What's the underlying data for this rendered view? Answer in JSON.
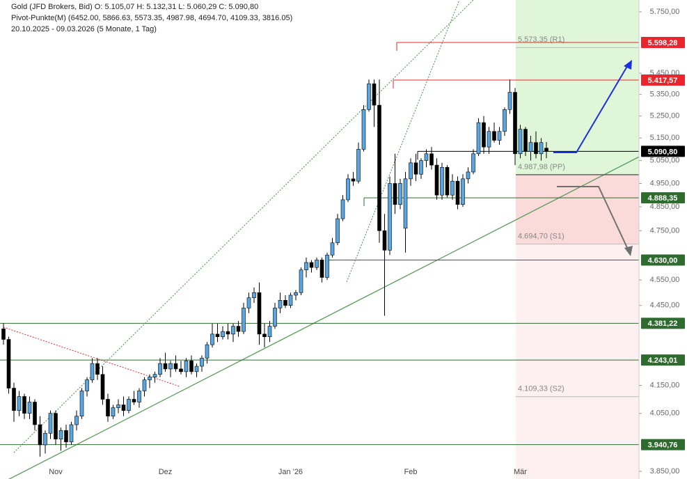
{
  "chart_data": {
    "type": "candlestick",
    "header": [
      "Gold (JFD Brokers, Bid)  O: 5.105,07  H: 5.132,31  L: 5.060,29  C: 5.090,80",
      "Pivot-Punkte(M)  (6452.00, 5866.63, 5573.35, 4987.98, 4694.70, 4109.33, 3816.05)",
      "20.10.2025 - 09.03.2026  (5 Monate, 1 Tag)"
    ],
    "log_scale": true,
    "ylim": [
      3850,
      5750
    ],
    "yticks": [
      {
        "value": 5750,
        "label": "5.750,00"
      },
      {
        "value": 5450,
        "label": "5.450,00"
      },
      {
        "value": 5350,
        "label": "5.350,00"
      },
      {
        "value": 5250,
        "label": "5.250,00"
      },
      {
        "value": 5150,
        "label": "5.150,00"
      },
      {
        "value": 5050,
        "label": "5.050,00"
      },
      {
        "value": 4950,
        "label": "4.950,00"
      },
      {
        "value": 4850,
        "label": "4.850,00"
      },
      {
        "value": 4750,
        "label": "4.750,00"
      },
      {
        "value": 4550,
        "label": "4.550,00"
      },
      {
        "value": 4450,
        "label": "4.450,00"
      },
      {
        "value": 4150,
        "label": "4.150,00"
      },
      {
        "value": 4050,
        "label": "4.050,00"
      },
      {
        "value": 3850,
        "label": "3.850,00"
      }
    ],
    "xlabels": [
      {
        "index": 10,
        "label": "Nov"
      },
      {
        "index": 31,
        "label": "Dez"
      },
      {
        "index": 55,
        "label": "Jan '26"
      },
      {
        "index": 78,
        "label": "Feb"
      },
      {
        "index": 99,
        "label": "Mär"
      }
    ],
    "up_color": "#5aa6e0",
    "down_color": "#000000",
    "levels": [
      {
        "value": 5598.28,
        "label": "5.598,28",
        "color": "#e8262b"
      },
      {
        "value": 5417.57,
        "label": "5.417,57",
        "color": "#e8262b"
      },
      {
        "value": 5090.8,
        "label": "5.090,80",
        "color": "#000000"
      },
      {
        "value": 4888.35,
        "label": "4.888,35",
        "color": "#2f6b2f"
      },
      {
        "value": 4630.0,
        "label": "4.630,00",
        "color": "#2f6b2f"
      },
      {
        "value": 4381.22,
        "label": "4.381,22",
        "color": "#2f6b2f"
      },
      {
        "value": 4243.01,
        "label": "4.243,01",
        "color": "#2f6b2f"
      },
      {
        "value": 3940.76,
        "label": "3.940,76",
        "color": "#2f6b2f"
      }
    ],
    "pivots": [
      {
        "value": 5573.35,
        "label": "5.573,35 (R1)"
      },
      {
        "value": 4987.98,
        "label": "4.987,98 (PP)"
      },
      {
        "value": 4694.7,
        "label": "4.694,70 (S1)"
      },
      {
        "value": 4109.33,
        "label": "4.109,33 (S2)"
      }
    ],
    "candles": [
      [
        4360,
        4381,
        4300,
        4320
      ],
      [
        4320,
        4330,
        4120,
        4140
      ],
      [
        4140,
        4160,
        4020,
        4060
      ],
      [
        4060,
        4130,
        4040,
        4110
      ],
      [
        4110,
        4120,
        4030,
        4050
      ],
      [
        4050,
        4110,
        4030,
        4090
      ],
      [
        4090,
        4100,
        3990,
        4010
      ],
      [
        4010,
        4040,
        3900,
        3940
      ],
      [
        3940,
        3990,
        3910,
        3980
      ],
      [
        3980,
        4060,
        3960,
        4050
      ],
      [
        4050,
        4060,
        3940,
        3960
      ],
      [
        3960,
        4000,
        3920,
        3990
      ],
      [
        3990,
        4010,
        3930,
        3950
      ],
      [
        3950,
        4020,
        3940,
        4010
      ],
      [
        4010,
        4060,
        3990,
        4040
      ],
      [
        4040,
        4140,
        4030,
        4130
      ],
      [
        4130,
        4180,
        4110,
        4170
      ],
      [
        4170,
        4250,
        4160,
        4230
      ],
      [
        4230,
        4250,
        4170,
        4190
      ],
      [
        4190,
        4220,
        4080,
        4100
      ],
      [
        4100,
        4120,
        4020,
        4040
      ],
      [
        4040,
        4080,
        4030,
        4070
      ],
      [
        4070,
        4100,
        4050,
        4080
      ],
      [
        4080,
        4110,
        4040,
        4060
      ],
      [
        4060,
        4110,
        4050,
        4100
      ],
      [
        4100,
        4130,
        4080,
        4090
      ],
      [
        4090,
        4140,
        4070,
        4130
      ],
      [
        4130,
        4180,
        4110,
        4170
      ],
      [
        4170,
        4190,
        4140,
        4180
      ],
      [
        4180,
        4200,
        4160,
        4190
      ],
      [
        4190,
        4250,
        4180,
        4230
      ],
      [
        4230,
        4270,
        4200,
        4210
      ],
      [
        4210,
        4240,
        4180,
        4230
      ],
      [
        4230,
        4260,
        4200,
        4210
      ],
      [
        4210,
        4240,
        4190,
        4200
      ],
      [
        4200,
        4250,
        4180,
        4240
      ],
      [
        4240,
        4260,
        4190,
        4200
      ],
      [
        4200,
        4230,
        4180,
        4220
      ],
      [
        4220,
        4260,
        4200,
        4250
      ],
      [
        4250,
        4310,
        4230,
        4300
      ],
      [
        4300,
        4380,
        4290,
        4340
      ],
      [
        4340,
        4380,
        4310,
        4330
      ],
      [
        4330,
        4370,
        4320,
        4350
      ],
      [
        4350,
        4380,
        4320,
        4340
      ],
      [
        4340,
        4380,
        4310,
        4370
      ],
      [
        4370,
        4390,
        4330,
        4350
      ],
      [
        4350,
        4460,
        4340,
        4440
      ],
      [
        4440,
        4500,
        4420,
        4480
      ],
      [
        4480,
        4520,
        4460,
        4500
      ],
      [
        4500,
        4540,
        4300,
        4340
      ],
      [
        4340,
        4380,
        4290,
        4330
      ],
      [
        4330,
        4390,
        4310,
        4370
      ],
      [
        4370,
        4460,
        4360,
        4440
      ],
      [
        4440,
        4500,
        4420,
        4470
      ],
      [
        4470,
        4490,
        4440,
        4450
      ],
      [
        4450,
        4500,
        4440,
        4490
      ],
      [
        4490,
        4510,
        4470,
        4500
      ],
      [
        4500,
        4600,
        4490,
        4590
      ],
      [
        4590,
        4640,
        4560,
        4620
      ],
      [
        4620,
        4630,
        4580,
        4600
      ],
      [
        4600,
        4640,
        4590,
        4630
      ],
      [
        4630,
        4640,
        4540,
        4560
      ],
      [
        4560,
        4660,
        4550,
        4650
      ],
      [
        4650,
        4720,
        4640,
        4700
      ],
      [
        4700,
        4820,
        4690,
        4800
      ],
      [
        4800,
        4900,
        4790,
        4880
      ],
      [
        4880,
        4990,
        4870,
        4970
      ],
      [
        4970,
        5000,
        4940,
        4960
      ],
      [
        4960,
        5130,
        4950,
        5100
      ],
      [
        5100,
        5300,
        5090,
        5280
      ],
      [
        5280,
        5420,
        5270,
        5400
      ],
      [
        5400,
        5420,
        5200,
        5300
      ],
      [
        5300,
        5420,
        4700,
        4750
      ],
      [
        4750,
        4820,
        4410,
        4670
      ],
      [
        4670,
        4980,
        4650,
        4950
      ],
      [
        4950,
        5080,
        4820,
        4860
      ],
      [
        4860,
        4970,
        4840,
        4950
      ],
      [
        4760,
        5000,
        4660,
        4970
      ],
      [
        4970,
        5060,
        4940,
        5040
      ],
      [
        5040,
        5080,
        4960,
        4990
      ],
      [
        4990,
        5060,
        4970,
        5050
      ],
      [
        5050,
        5100,
        5020,
        5080
      ],
      [
        5080,
        5110,
        5010,
        5030
      ],
      [
        5030,
        5060,
        4880,
        4900
      ],
      [
        4900,
        5040,
        4880,
        5020
      ],
      [
        5020,
        5030,
        4890,
        4900
      ],
      [
        4900,
        4990,
        4880,
        4960
      ],
      [
        4960,
        4980,
        4840,
        4860
      ],
      [
        4860,
        4990,
        4850,
        4970
      ],
      [
        4970,
        5020,
        4950,
        5000
      ],
      [
        5000,
        5100,
        4990,
        5080
      ],
      [
        5080,
        5240,
        5070,
        5220
      ],
      [
        5220,
        5250,
        5080,
        5110
      ],
      [
        5110,
        5200,
        5080,
        5180
      ],
      [
        5180,
        5220,
        5130,
        5140
      ],
      [
        5140,
        5200,
        5120,
        5180
      ],
      [
        5180,
        5290,
        5160,
        5280
      ],
      [
        5280,
        5420,
        5260,
        5360
      ],
      [
        5360,
        5380,
        5030,
        5080
      ],
      [
        5080,
        5210,
        5060,
        5190
      ],
      [
        5190,
        5200,
        5070,
        5090
      ],
      [
        5090,
        5160,
        5050,
        5130
      ],
      [
        5130,
        5180,
        5060,
        5080
      ],
      [
        5080,
        5150,
        5050,
        5130
      ],
      [
        5105.07,
        5132.31,
        5060.29,
        5090.8
      ]
    ]
  }
}
